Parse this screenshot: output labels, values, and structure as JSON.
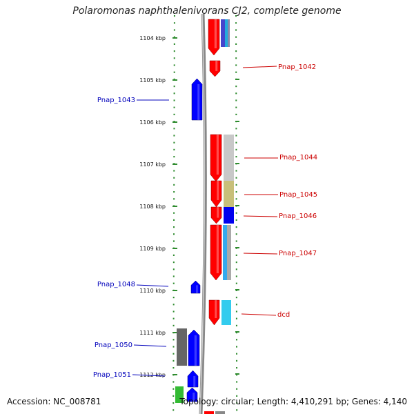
{
  "title": "Polaromonas naphthalenivorans CJ2, complete genome",
  "accession": "Accession: NC_008781",
  "summary": "Topology: circular; Length: 4,410,291 bp; Genes: 4,140",
  "ticks": [
    {
      "label": "1104 kbp",
      "kbp": 1104
    },
    {
      "label": "1105 kbp",
      "kbp": 1105
    },
    {
      "label": "1106 kbp",
      "kbp": 1106
    },
    {
      "label": "1107 kbp",
      "kbp": 1107
    },
    {
      "label": "1108 kbp",
      "kbp": 1108
    },
    {
      "label": "1109 kbp",
      "kbp": 1109
    },
    {
      "label": "1110 kbp",
      "kbp": 1110
    },
    {
      "label": "1111 kbp",
      "kbp": 1111
    },
    {
      "label": "1112 kbp",
      "kbp": 1112
    }
  ],
  "genes": [
    {
      "name": "Pnap_1042",
      "side": "right",
      "color": "#cc0000"
    },
    {
      "name": "Pnap_1043",
      "side": "left",
      "color": "#0000bb"
    },
    {
      "name": "Pnap_1044",
      "side": "right",
      "color": "#cc0000"
    },
    {
      "name": "Pnap_1045",
      "side": "right",
      "color": "#cc0000"
    },
    {
      "name": "Pnap_1046",
      "side": "right",
      "color": "#cc0000"
    },
    {
      "name": "Pnap_1047",
      "side": "right",
      "color": "#cc0000"
    },
    {
      "name": "Pnap_1048",
      "side": "left",
      "color": "#0000bb"
    },
    {
      "name": "dcd",
      "side": "right",
      "color": "#cc0000"
    },
    {
      "name": "Pnap_1050",
      "side": "left",
      "color": "#0000bb"
    },
    {
      "name": "Pnap_1051",
      "side": "left",
      "color": "#0000bb"
    }
  ],
  "colors": {
    "forward_cds": "#ff0000",
    "reverse_cds": "#0000ff",
    "tick_green": "#2e8b2e",
    "backbone": "#999999"
  }
}
